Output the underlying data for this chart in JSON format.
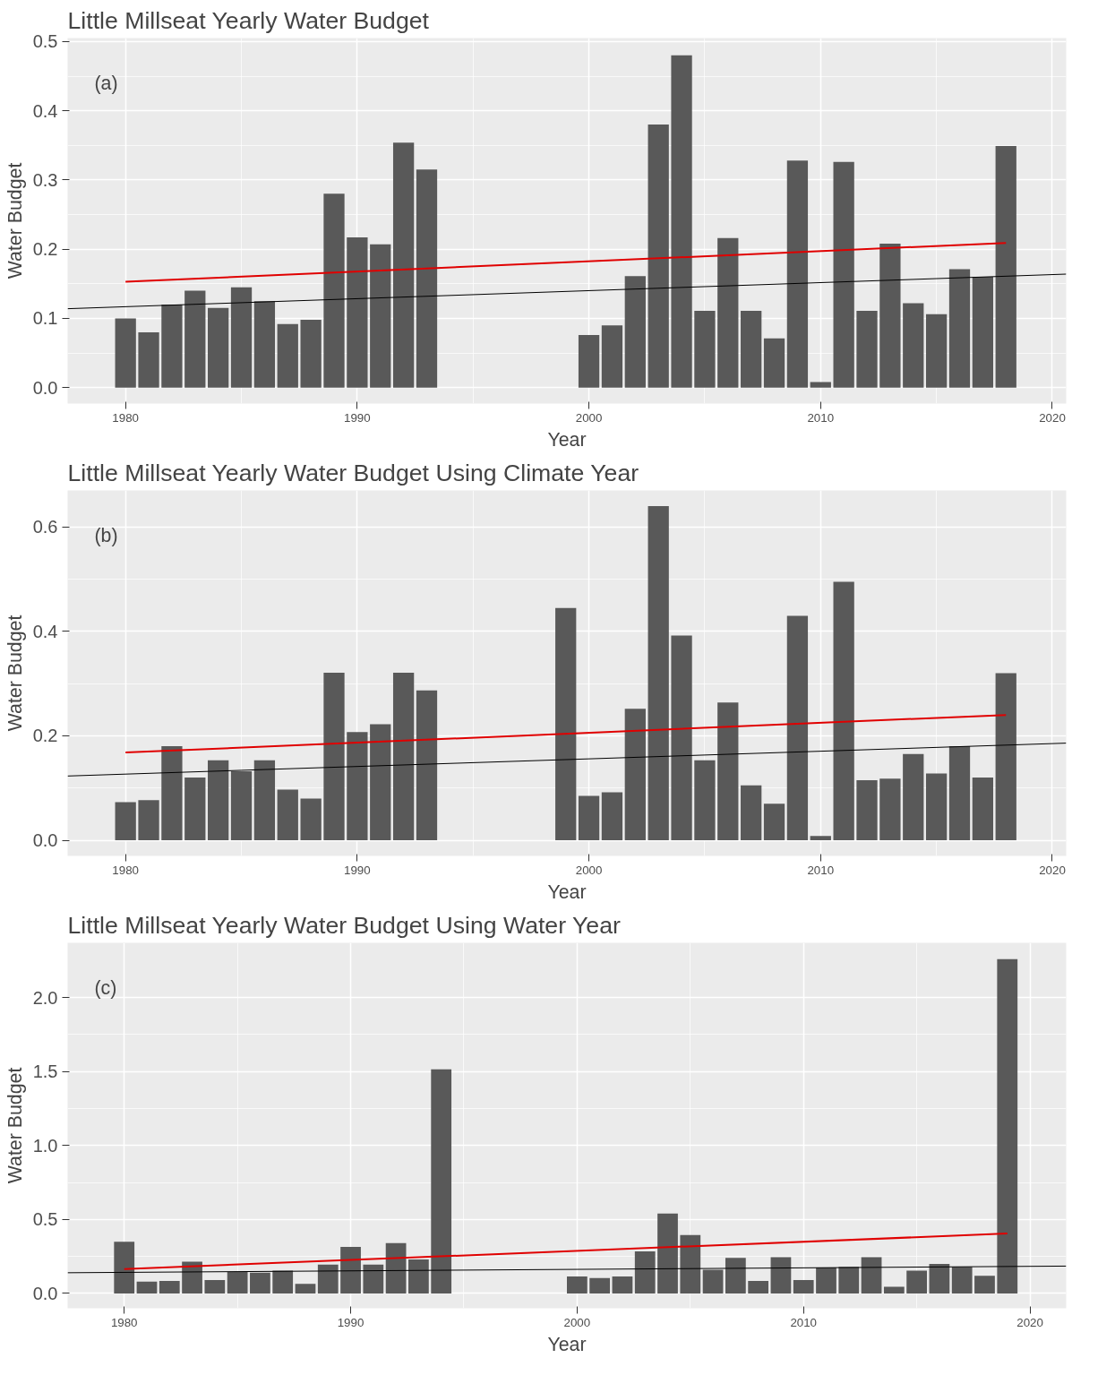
{
  "chart_data": [
    {
      "type": "bar",
      "title": "Little Millseat Yearly Water Budget",
      "xlabel": "Year",
      "ylabel": "Water Budget",
      "annotations": [
        "(a)"
      ],
      "xlim": [
        1977.5,
        2020.6
      ],
      "ylim": [
        -0.023,
        0.505
      ],
      "xticks": [
        1980,
        1990,
        2000,
        2010,
        2020
      ],
      "yticks": [
        {
          "value": 0,
          "label": "0.0"
        },
        0.1,
        0.2,
        0.3,
        0.4,
        0.5
      ],
      "grid": true,
      "series": [
        {
          "color": "#595959",
          "x": [
            1980,
            1981,
            1982,
            1983,
            1984,
            1985,
            1986,
            1987,
            1988,
            1989,
            1990,
            1991,
            1992,
            1993,
            2000,
            2001,
            2002,
            2003,
            2004,
            2005,
            2006,
            2007,
            2008,
            2009,
            2010,
            2011,
            2012,
            2013,
            2014,
            2015,
            2016,
            2017,
            2018
          ],
          "values": [
            0.1,
            0.08,
            0.12,
            0.14,
            0.115,
            0.145,
            0.125,
            0.092,
            0.098,
            0.28,
            0.217,
            0.207,
            0.354,
            0.315,
            0.076,
            0.09,
            0.161,
            0.38,
            0.48,
            0.111,
            0.216,
            0.111,
            0.071,
            0.328,
            0.008,
            0.326,
            0.111,
            0.208,
            0.122,
            0.106,
            0.171,
            0.16,
            0.349
          ]
        },
        {
          "type": "line",
          "color": "#e00000",
          "x": [
            1980,
            2018
          ],
          "values": [
            0.153,
            0.209
          ]
        },
        {
          "type": "line",
          "color": "#000000",
          "x": [
            1977.5,
            2020.6
          ],
          "values": [
            0.114,
            0.164
          ]
        }
      ]
    },
    {
      "type": "bar",
      "title": "Little Millseat Yearly Water Budget Using Climate Year",
      "xlabel": "Year",
      "ylabel": "Water Budget",
      "annotations": [
        "(b)"
      ],
      "xlim": [
        1977.5,
        2020.6
      ],
      "ylim": [
        -0.03,
        0.67
      ],
      "xticks": [
        1980,
        1990,
        2000,
        2010,
        2020
      ],
      "yticks": [
        {
          "value": 0,
          "label": "0.0"
        },
        0.2,
        0.4,
        0.6
      ],
      "grid": true,
      "series": [
        {
          "color": "#595959",
          "x": [
            1980,
            1981,
            1982,
            1983,
            1984,
            1985,
            1986,
            1987,
            1988,
            1989,
            1990,
            1991,
            1992,
            1993,
            1999,
            2000,
            2001,
            2002,
            2003,
            2004,
            2005,
            2006,
            2007,
            2008,
            2009,
            2010,
            2011,
            2012,
            2013,
            2014,
            2015,
            2016,
            2017,
            2018
          ],
          "values": [
            0.073,
            0.077,
            0.18,
            0.12,
            0.153,
            0.132,
            0.153,
            0.097,
            0.08,
            0.321,
            0.207,
            0.222,
            0.321,
            0.287,
            0.445,
            0.085,
            0.092,
            0.252,
            0.64,
            0.392,
            0.153,
            0.264,
            0.105,
            0.07,
            0.43,
            0.008,
            0.495,
            0.115,
            0.118,
            0.165,
            0.128,
            0.18,
            0.12,
            0.32
          ]
        },
        {
          "type": "line",
          "color": "#e00000",
          "x": [
            1980,
            2018
          ],
          "values": [
            0.168,
            0.24
          ]
        },
        {
          "type": "line",
          "color": "#000000",
          "x": [
            1977.5,
            2020.6
          ],
          "values": [
            0.123,
            0.186
          ]
        }
      ]
    },
    {
      "type": "bar",
      "title": "Little Millseat Yearly Water Budget Using Water Year",
      "xlabel": "Year",
      "ylabel": "Water Budget",
      "annotations": [
        "(c)"
      ],
      "xlim": [
        1977.5,
        2021.6
      ],
      "ylim": [
        -0.1,
        2.37
      ],
      "xticks": [
        1980,
        1990,
        2000,
        2010,
        2020
      ],
      "yticks": [
        {
          "value": 0,
          "label": "0.0"
        },
        {
          "value": 0.5,
          "label": "0.5"
        },
        {
          "value": 1,
          "label": "1.0"
        },
        {
          "value": 1.5,
          "label": "1.5"
        },
        {
          "value": 2,
          "label": "2.0"
        }
      ],
      "grid": true,
      "series": [
        {
          "color": "#595959",
          "x": [
            1980,
            1981,
            1982,
            1983,
            1984,
            1985,
            1986,
            1987,
            1988,
            1989,
            1990,
            1991,
            1992,
            1993,
            1994,
            2000,
            2001,
            2002,
            2003,
            2004,
            2005,
            2006,
            2007,
            2008,
            2009,
            2010,
            2011,
            2012,
            2013,
            2014,
            2015,
            2016,
            2017,
            2018,
            2019
          ],
          "values": [
            0.35,
            0.08,
            0.085,
            0.215,
            0.09,
            0.145,
            0.14,
            0.155,
            0.065,
            0.195,
            0.315,
            0.195,
            0.34,
            0.23,
            1.515,
            0.115,
            0.105,
            0.115,
            0.285,
            0.54,
            0.395,
            0.16,
            0.24,
            0.085,
            0.245,
            0.09,
            0.175,
            0.18,
            0.245,
            0.045,
            0.155,
            0.2,
            0.18,
            0.12,
            2.26
          ]
        },
        {
          "type": "line",
          "color": "#e00000",
          "x": [
            1980,
            2019
          ],
          "values": [
            0.165,
            0.405
          ]
        },
        {
          "type": "line",
          "color": "#000000",
          "x": [
            1977.5,
            2021.6
          ],
          "values": [
            0.14,
            0.185
          ]
        }
      ]
    }
  ]
}
